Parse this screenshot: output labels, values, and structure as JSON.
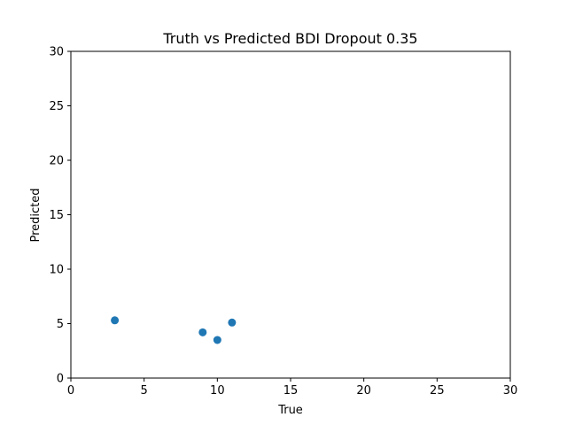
{
  "chart_data": {
    "type": "scatter",
    "title": "Truth vs Predicted BDI Dropout 0.35",
    "xlabel": "True",
    "ylabel": "Predicted",
    "xlim": [
      0,
      30
    ],
    "ylim": [
      0,
      30
    ],
    "xticks": [
      0,
      5,
      10,
      15,
      20,
      25,
      30
    ],
    "yticks": [
      0,
      5,
      10,
      15,
      20,
      25,
      30
    ],
    "grid": false,
    "marker_color": "#1f77b4",
    "points": [
      {
        "x": 3,
        "y": 5.3
      },
      {
        "x": 9,
        "y": 4.2
      },
      {
        "x": 10,
        "y": 3.5
      },
      {
        "x": 11,
        "y": 5.1
      }
    ]
  }
}
